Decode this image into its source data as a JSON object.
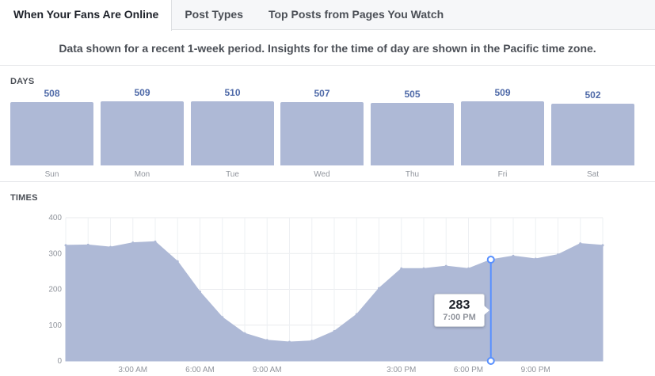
{
  "tabs": [
    {
      "label": "When Your Fans Are Online",
      "active": true
    },
    {
      "label": "Post Types",
      "active": false
    },
    {
      "label": "Top Posts from Pages You Watch",
      "active": false
    }
  ],
  "notice": "Data shown for a recent 1-week period. Insights for the time of day are shown in the Pacific time zone.",
  "days_section": {
    "label": "DAYS",
    "bar_color": "#aeb9d6",
    "value_color": "#4f6aa8",
    "items": [
      {
        "day": "Sun",
        "value": "508"
      },
      {
        "day": "Mon",
        "value": "509"
      },
      {
        "day": "Tue",
        "value": "510"
      },
      {
        "day": "Wed",
        "value": "507"
      },
      {
        "day": "Thu",
        "value": "505"
      },
      {
        "day": "Fri",
        "value": "509"
      },
      {
        "day": "Sat",
        "value": "502"
      }
    ]
  },
  "times_section": {
    "label": "TIMES",
    "tooltip": {
      "value": "283",
      "time": "7:00 PM"
    },
    "highlight_color": "#5890ff"
  },
  "chart_data": {
    "type": "area",
    "title": "",
    "xlabel": "",
    "ylabel": "",
    "ylim": [
      0,
      400
    ],
    "yticks": [
      "0",
      "100",
      "200",
      "300",
      "400"
    ],
    "xtick_labels": [
      "3:00 AM",
      "6:00 AM",
      "9:00 AM",
      "3:00 PM",
      "6:00 PM",
      "9:00 PM"
    ],
    "xtick_hours": [
      3,
      6,
      9,
      15,
      18,
      21
    ],
    "grid": true,
    "highlight_hour": 19,
    "series": [
      {
        "x": [
          0,
          1,
          2,
          3,
          4,
          5,
          6,
          7,
          8,
          9,
          10,
          11,
          12,
          13,
          14,
          15,
          16,
          17,
          18,
          19,
          20,
          21,
          22,
          23,
          24
        ],
        "values": [
          323,
          324,
          318,
          330,
          333,
          278,
          193,
          122,
          77,
          58,
          53,
          56,
          83,
          130,
          203,
          258,
          258,
          265,
          258,
          283,
          293,
          285,
          297,
          328,
          323
        ]
      }
    ]
  }
}
